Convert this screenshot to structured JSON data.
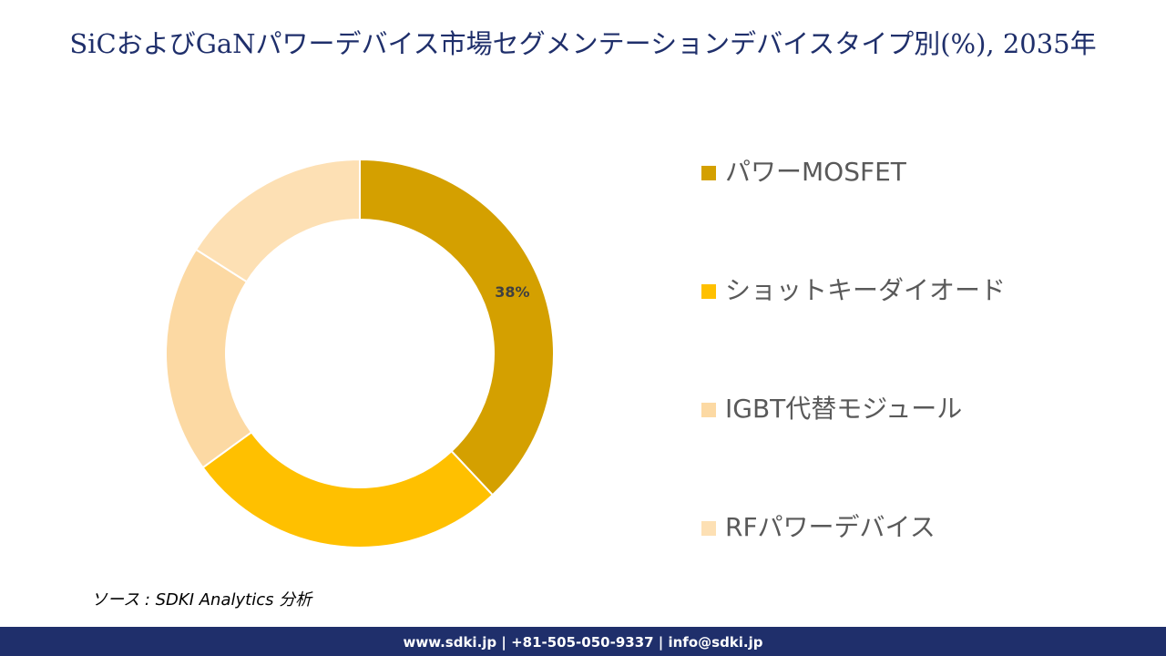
{
  "chart_data": {
    "type": "donut",
    "title": "SiCおよびGaNパワーデバイス市場セグメンテーションデバイスタイプ別(%), 2035年",
    "categories": [
      "パワーMOSFET",
      "ショットキーダイオード",
      "IGBT代替モジュール",
      "RFパワーデバイス"
    ],
    "values": [
      38,
      27,
      19,
      16
    ],
    "value_labels": [
      "38%",
      null,
      null,
      null
    ],
    "colors": [
      "#d4a000",
      "#ffc000",
      "#fcd9a3",
      "#fde0b4"
    ],
    "legend": "right"
  },
  "source": "ソース : SDKI Analytics 分析",
  "footer": "www.sdki.jp | +81-505-050-9337 | info@sdki.jp"
}
